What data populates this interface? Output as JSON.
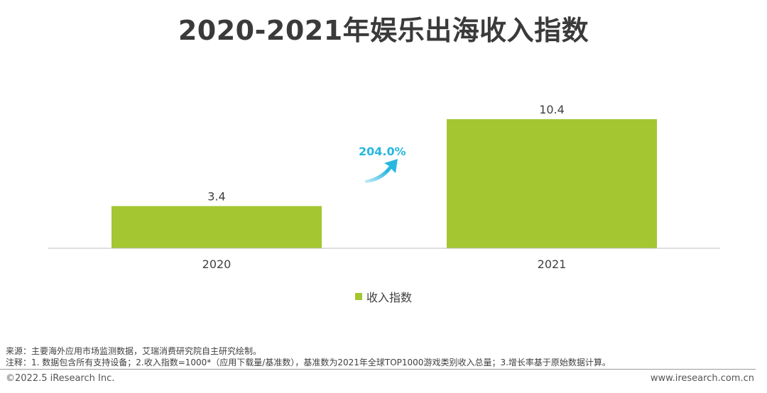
{
  "title": "2020-2021年娱乐出海收入指数",
  "chart_data": {
    "type": "bar",
    "categories": [
      "2020",
      "2021"
    ],
    "series": [
      {
        "name": "收入指数",
        "values": [
          3.4,
          10.4
        ],
        "labels": [
          "3.4",
          "10.4"
        ]
      }
    ],
    "ylim": [
      0,
      12
    ],
    "grid": false,
    "legend_position": "bottom",
    "growth_annotation": "204.0%"
  },
  "colors": {
    "bar": "#a4c631",
    "growth": "#26b7e0",
    "axis": "#bfbfbf",
    "title": "#3a3a3a"
  },
  "notes": {
    "source": "来源：主要海外应用市场监测数据，艾瑞消费研究院自主研究绘制。",
    "notes": "注释：1. 数据包含所有支持设备；2.收入指数=1000*（应用下载量/基准数），基准数为2021年全球TOP1000游戏类别收入总量；3.增长率基于原始数据计算。"
  },
  "footer": {
    "copyright": "©2022.5 iResearch Inc.",
    "website": "www.iresearch.com.cn"
  }
}
